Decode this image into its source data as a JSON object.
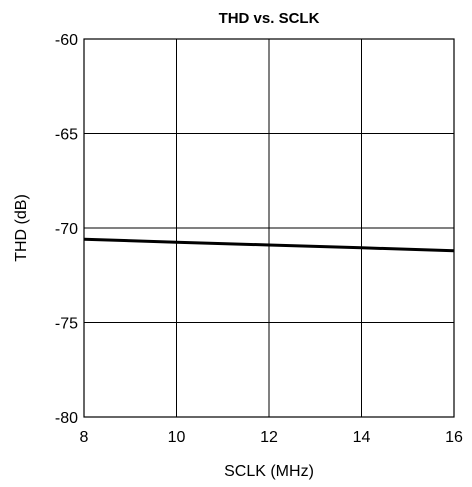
{
  "chart_data": {
    "type": "line",
    "title": "THD vs. SCLK",
    "xlabel": "SCLK (MHz)",
    "ylabel": "THD (dB)",
    "xlim": [
      8,
      16
    ],
    "ylim": [
      -80,
      -60
    ],
    "x_ticks": [
      8,
      10,
      12,
      14,
      16
    ],
    "y_ticks": [
      -60,
      -65,
      -70,
      -75,
      -80
    ],
    "x_tick_labels": [
      "8",
      "10",
      "12",
      "14",
      "16"
    ],
    "y_tick_labels": [
      "-60",
      "-65",
      "-70",
      "-75",
      "-80"
    ],
    "grid": true,
    "series": [
      {
        "x": [
          8,
          10,
          12,
          14,
          16
        ],
        "values": [
          -70.6,
          -70.75,
          -70.9,
          -71.05,
          -71.2
        ],
        "color": "#000000"
      }
    ]
  }
}
